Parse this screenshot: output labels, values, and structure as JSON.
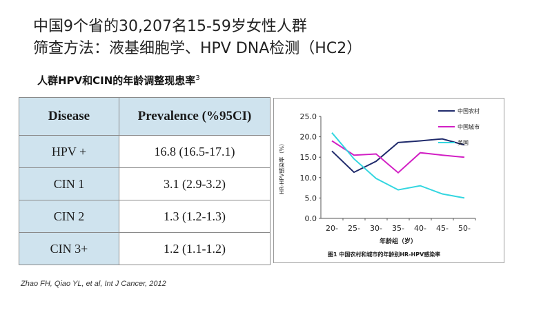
{
  "heading": {
    "line1": "中国9个省的30,207名15-59岁女性人群",
    "line2": "筛查方法：液基细胞学、HPV DNA检测（HC2）"
  },
  "table": {
    "title": "人群HPV和CIN的年龄调整现患率",
    "title_ref": "3",
    "headers": [
      "Disease",
      "Prevalence (%95CI)"
    ],
    "rows": [
      {
        "disease": "HPV +",
        "prevalence": "16.8 (16.5-17.1)"
      },
      {
        "disease": "CIN 1",
        "prevalence": "3.1 (2.9-3.2)"
      },
      {
        "disease": "CIN 2",
        "prevalence": "1.3 (1.2-1.3)"
      },
      {
        "disease": "CIN 3+",
        "prevalence": "1.2 (1.1-1.2)"
      }
    ]
  },
  "chart_data": {
    "type": "line",
    "title": "图1 中国农村和城市的年龄别HR-HPV感染率",
    "xlabel": "年龄组（岁）",
    "ylabel": "HR-HPV感染率（%）",
    "categories": [
      "20-",
      "25-",
      "30-",
      "35-",
      "40-",
      "45-",
      "50-"
    ],
    "ylim": [
      0,
      25
    ],
    "yticks": [
      "0.0",
      "5.0",
      "10.0",
      "15.0",
      "20.0",
      "25.0"
    ],
    "legend_position": "top-right",
    "grid": false,
    "series": [
      {
        "name": "中国农村",
        "color": "#1f2a6b",
        "values": [
          16.5,
          11.3,
          14.0,
          18.6,
          19.0,
          19.5,
          18.0
        ]
      },
      {
        "name": "中国城市",
        "color": "#d21fc4",
        "values": [
          19.0,
          15.5,
          15.8,
          11.2,
          16.1,
          15.5,
          15.0
        ]
      },
      {
        "name": "美国",
        "color": "#33d6e0",
        "values": [
          21.0,
          14.6,
          9.8,
          7.0,
          8.0,
          6.0,
          5.0
        ]
      }
    ]
  },
  "citation": "Zhao FH, Qiao YL, et al, Int J Cancer, 2012"
}
